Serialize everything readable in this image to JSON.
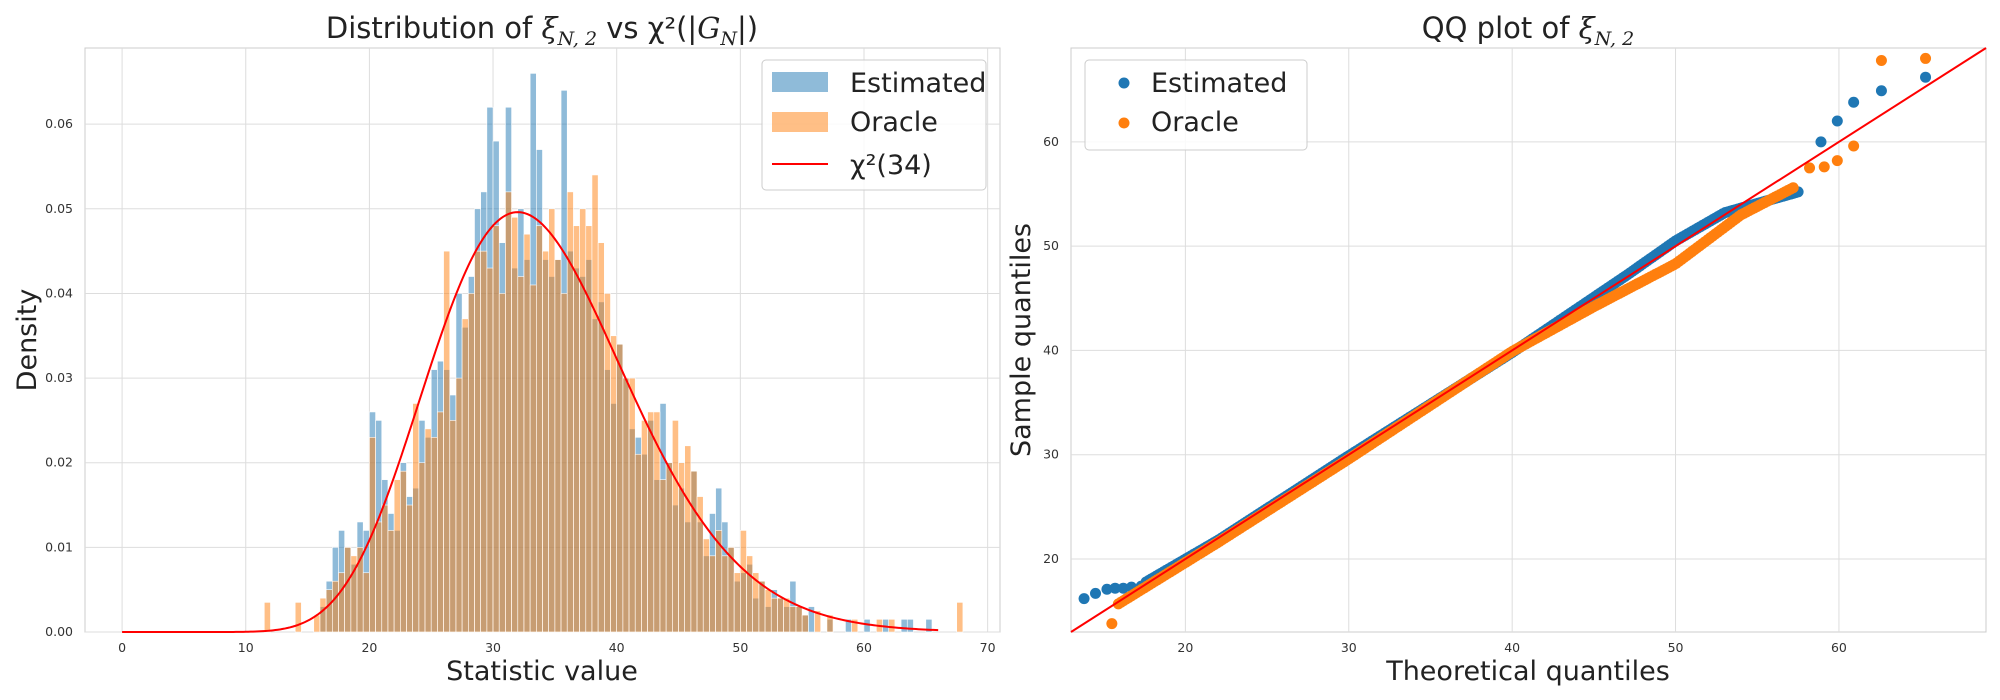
{
  "chart_data": [
    {
      "type": "bar",
      "subtype": "histogram",
      "title": "Distribution of ξ_{N,2} vs χ²(|G_N|)",
      "title_parts": {
        "prefix": "Distribution of ",
        "symbol": "ξ",
        "sub": "N, 2",
        "mid": " vs χ²(|",
        "sym2": "G",
        "sub2": "N",
        "suffix": "|)"
      },
      "xlabel": "Statistic value",
      "ylabel": "Density",
      "xlim": [
        -3,
        71
      ],
      "ylim": [
        0,
        0.069
      ],
      "xticks": [
        0,
        10,
        20,
        30,
        40,
        50,
        60,
        70
      ],
      "yticks": [
        0.0,
        0.01,
        0.02,
        0.03,
        0.04,
        0.05,
        0.06
      ],
      "grid": true,
      "legend_position": "top-right",
      "bin_width": 0.5,
      "series": [
        {
          "name": "Estimated",
          "color": "#1f77b4",
          "opacity": 0.5,
          "bins": [
            [
              16,
              0.003
            ],
            [
              16.5,
              0.006
            ],
            [
              17,
              0.01
            ],
            [
              17.5,
              0.012
            ],
            [
              18,
              0.01
            ],
            [
              18.5,
              0.008
            ],
            [
              19,
              0.013
            ],
            [
              19.5,
              0.012
            ],
            [
              20,
              0.026
            ],
            [
              20.5,
              0.025
            ],
            [
              21,
              0.018
            ],
            [
              21.5,
              0.014
            ],
            [
              22,
              0.012
            ],
            [
              22.5,
              0.02
            ],
            [
              23,
              0.016
            ],
            [
              23.5,
              0.017
            ],
            [
              24,
              0.025
            ],
            [
              24.5,
              0.023
            ],
            [
              25,
              0.031
            ],
            [
              25.5,
              0.032
            ],
            [
              26,
              0.031
            ],
            [
              26.5,
              0.028
            ],
            [
              27,
              0.04
            ],
            [
              27.5,
              0.036
            ],
            [
              28,
              0.042
            ],
            [
              28.5,
              0.05
            ],
            [
              29,
              0.052
            ],
            [
              29.5,
              0.062
            ],
            [
              30,
              0.058
            ],
            [
              30.5,
              0.046
            ],
            [
              31,
              0.062
            ],
            [
              31.5,
              0.043
            ],
            [
              32,
              0.05
            ],
            [
              32.5,
              0.044
            ],
            [
              33,
              0.066
            ],
            [
              33.5,
              0.057
            ],
            [
              34,
              0.044
            ],
            [
              34.5,
              0.042
            ],
            [
              35,
              0.044
            ],
            [
              35.5,
              0.064
            ],
            [
              36,
              0.045
            ],
            [
              36.5,
              0.043
            ],
            [
              37,
              0.042
            ],
            [
              37.5,
              0.044
            ],
            [
              38,
              0.037
            ],
            [
              38.5,
              0.039
            ],
            [
              39,
              0.031
            ],
            [
              39.5,
              0.027
            ],
            [
              40,
              0.034
            ],
            [
              40.5,
              0.03
            ],
            [
              41,
              0.024
            ],
            [
              41.5,
              0.023
            ],
            [
              42,
              0.021
            ],
            [
              42.5,
              0.025
            ],
            [
              43,
              0.018
            ],
            [
              43.5,
              0.027
            ],
            [
              44,
              0.02
            ],
            [
              44.5,
              0.015
            ],
            [
              45,
              0.017
            ],
            [
              45.5,
              0.013
            ],
            [
              46,
              0.019
            ],
            [
              46.5,
              0.013
            ],
            [
              47,
              0.009
            ],
            [
              47.5,
              0.014
            ],
            [
              48,
              0.017
            ],
            [
              48.5,
              0.013
            ],
            [
              49,
              0.01
            ],
            [
              49.5,
              0.006
            ],
            [
              50,
              0.007
            ],
            [
              50.5,
              0.008
            ],
            [
              51,
              0.004
            ],
            [
              51.5,
              0.006
            ],
            [
              52,
              0.003
            ],
            [
              52.5,
              0.005
            ],
            [
              53,
              0.004
            ],
            [
              53.5,
              0.003
            ],
            [
              54,
              0.006
            ],
            [
              54.5,
              0.003
            ],
            [
              55,
              0.002
            ],
            [
              55.5,
              0.003
            ],
            [
              57,
              0.0015
            ],
            [
              58.5,
              0.0015
            ],
            [
              60,
              0.0015
            ],
            [
              61.5,
              0.0015
            ],
            [
              63,
              0.0015
            ],
            [
              63.5,
              0.0015
            ],
            [
              65,
              0.0015
            ]
          ]
        },
        {
          "name": "Oracle",
          "color": "#ff7f0e",
          "opacity": 0.5,
          "bins": [
            [
              11.5,
              0.0035
            ],
            [
              14,
              0.0035
            ],
            [
              15.5,
              0.002
            ],
            [
              16,
              0.004
            ],
            [
              16.5,
              0.005
            ],
            [
              17,
              0.006
            ],
            [
              17.5,
              0.007
            ],
            [
              18,
              0.01
            ],
            [
              18.5,
              0.009
            ],
            [
              19,
              0.01
            ],
            [
              19.5,
              0.007
            ],
            [
              20,
              0.023
            ],
            [
              20.5,
              0.013
            ],
            [
              21,
              0.015
            ],
            [
              21.5,
              0.012
            ],
            [
              22,
              0.018
            ],
            [
              22.5,
              0.019
            ],
            [
              23,
              0.015
            ],
            [
              23.5,
              0.027
            ],
            [
              24,
              0.02
            ],
            [
              24.5,
              0.024
            ],
            [
              25,
              0.023
            ],
            [
              25.5,
              0.026
            ],
            [
              26,
              0.045
            ],
            [
              26.5,
              0.025
            ],
            [
              27,
              0.03
            ],
            [
              27.5,
              0.037
            ],
            [
              28,
              0.04
            ],
            [
              28.5,
              0.045
            ],
            [
              29,
              0.045
            ],
            [
              29.5,
              0.043
            ],
            [
              30,
              0.048
            ],
            [
              30.5,
              0.04
            ],
            [
              31,
              0.052
            ],
            [
              31.5,
              0.049
            ],
            [
              32,
              0.042
            ],
            [
              32.5,
              0.047
            ],
            [
              33,
              0.041
            ],
            [
              33.5,
              0.048
            ],
            [
              34,
              0.045
            ],
            [
              34.5,
              0.05
            ],
            [
              35,
              0.044
            ],
            [
              35.5,
              0.04
            ],
            [
              36,
              0.052
            ],
            [
              36.5,
              0.048
            ],
            [
              37,
              0.05
            ],
            [
              37.5,
              0.048
            ],
            [
              38,
              0.054
            ],
            [
              38.5,
              0.046
            ],
            [
              39,
              0.04
            ],
            [
              39.5,
              0.035
            ],
            [
              40,
              0.034
            ],
            [
              40.5,
              0.03
            ],
            [
              41,
              0.03
            ],
            [
              41.5,
              0.021
            ],
            [
              42,
              0.025
            ],
            [
              42.5,
              0.026
            ],
            [
              43,
              0.026
            ],
            [
              43.5,
              0.018
            ],
            [
              44,
              0.02
            ],
            [
              44.5,
              0.025
            ],
            [
              45,
              0.02
            ],
            [
              45.5,
              0.022
            ],
            [
              46,
              0.019
            ],
            [
              46.5,
              0.016
            ],
            [
              47,
              0.011
            ],
            [
              47.5,
              0.009
            ],
            [
              48,
              0.012
            ],
            [
              48.5,
              0.009
            ],
            [
              49,
              0.01
            ],
            [
              49.5,
              0.007
            ],
            [
              50,
              0.012
            ],
            [
              50.5,
              0.009
            ],
            [
              51,
              0.007
            ],
            [
              51.5,
              0.006
            ],
            [
              52,
              0.005
            ],
            [
              52.5,
              0.004
            ],
            [
              53,
              0.004
            ],
            [
              53.5,
              0.004
            ],
            [
              54,
              0.003
            ],
            [
              54.5,
              0.003
            ],
            [
              55,
              0.002
            ],
            [
              56,
              0.0025
            ],
            [
              57,
              0.002
            ],
            [
              59,
              0.0015
            ],
            [
              61,
              0.0015
            ],
            [
              62,
              0.0015
            ],
            [
              67.5,
              0.0035
            ]
          ]
        },
        {
          "name": "χ²(34)",
          "kind": "line",
          "color": "#ff0000",
          "df": 34,
          "x_range": [
            0,
            66
          ]
        }
      ]
    },
    {
      "type": "scatter",
      "subtype": "qq",
      "title": "QQ plot of ξ_{N,2}",
      "title_parts": {
        "prefix": "QQ plot of ",
        "symbol": "ξ",
        "sub": "N, 2"
      },
      "xlabel": "Theoretical quantiles",
      "ylabel": "Sample quantiles",
      "xlim": [
        13,
        69
      ],
      "ylim": [
        13,
        69
      ],
      "xticks": [
        20,
        30,
        40,
        50,
        60
      ],
      "yticks": [
        20,
        30,
        40,
        50,
        60
      ],
      "grid": true,
      "legend_position": "top-left",
      "reference_line": {
        "color": "#ff0000",
        "from": [
          13,
          13
        ],
        "to": [
          69,
          69
        ]
      },
      "series": [
        {
          "name": "Estimated",
          "color": "#1f77b4",
          "points": [
            [
              13.8,
              16.2
            ],
            [
              14.5,
              16.7
            ],
            [
              15.2,
              17.1
            ],
            [
              15.7,
              17.2
            ],
            [
              16.2,
              17.2
            ],
            [
              16.7,
              17.3
            ],
            [
              17.3,
              17.4
            ],
            [
              58.9,
              60.0
            ],
            [
              59.9,
              62.0
            ],
            [
              60.9,
              63.8
            ],
            [
              62.6,
              64.9
            ],
            [
              65.3,
              66.2
            ]
          ],
          "body": {
            "from": [
              17.6,
              17.8
            ],
            "to": [
              57.5,
              55.2
            ],
            "mid": [
              [
                22,
                21.8
              ],
              [
                30,
                29.9
              ],
              [
                40,
                39.8
              ],
              [
                47,
                47.2
              ],
              [
                50,
                50.5
              ],
              [
                53,
                53.2
              ]
            ]
          }
        },
        {
          "name": "Oracle",
          "color": "#ff7f0e",
          "points": [
            [
              15.5,
              13.8
            ],
            [
              58.2,
              57.5
            ],
            [
              59.1,
              57.6
            ],
            [
              59.9,
              58.2
            ],
            [
              60.9,
              59.6
            ],
            [
              62.6,
              67.8
            ],
            [
              65.3,
              68.0
            ]
          ],
          "body": {
            "from": [
              15.9,
              15.7
            ],
            "to": [
              57.2,
              55.6
            ],
            "mid": [
              [
                22,
                21.6
              ],
              [
                30,
                29.6
              ],
              [
                40,
                39.9
              ],
              [
                45,
                44.2
              ],
              [
                50,
                48.3
              ],
              [
                54,
                53.0
              ]
            ]
          }
        }
      ]
    }
  ]
}
